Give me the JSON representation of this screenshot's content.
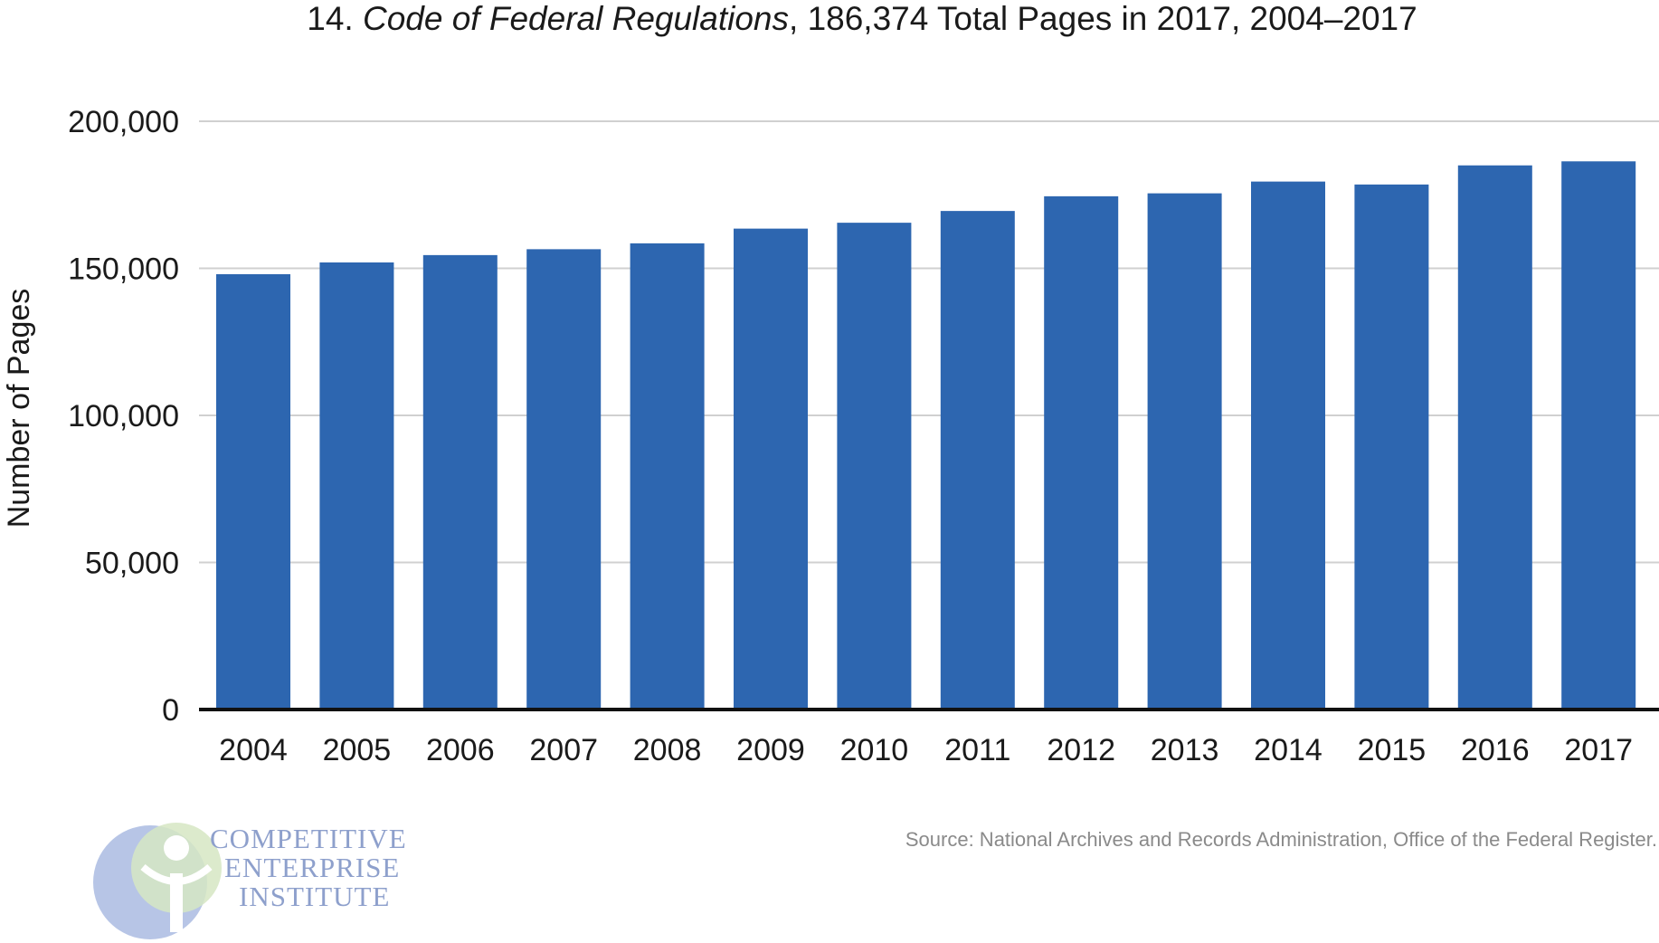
{
  "chart_data": {
    "type": "bar",
    "title_number": "14.",
    "title_italic": "Code of Federal Regulations",
    "title_rest": ", 186,374 Total Pages in 2017, 2004–2017",
    "xlabel": "",
    "ylabel": "Number of Pages",
    "ylim": [
      0,
      200000
    ],
    "yticks": [
      0,
      50000,
      100000,
      150000,
      200000
    ],
    "ytick_labels": [
      "0",
      "50,000",
      "100,000",
      "150,000",
      "200,000"
    ],
    "grid": true,
    "legend": "none",
    "categories": [
      "2004",
      "2005",
      "2006",
      "2007",
      "2008",
      "2009",
      "2010",
      "2011",
      "2012",
      "2013",
      "2014",
      "2015",
      "2016",
      "2017"
    ],
    "values": [
      148000,
      152000,
      154500,
      156500,
      158500,
      163500,
      165500,
      169500,
      174500,
      175500,
      179500,
      178500,
      185000,
      186374
    ]
  },
  "colors": {
    "bar": "#2d66b0",
    "gridline": "#d0d0d0",
    "baseline": "#111111",
    "logo_circle_blue": "#b7c5e6",
    "logo_circle_green": "#d6e6c3",
    "logo_figure": "#a9c8a3"
  },
  "source": "Source: National Archives and Records Administration, Office of the Federal Register.",
  "logo": {
    "line1": "COMPETITIVE",
    "line2": "ENTERPRISE",
    "line3": "INSTITUTE"
  }
}
